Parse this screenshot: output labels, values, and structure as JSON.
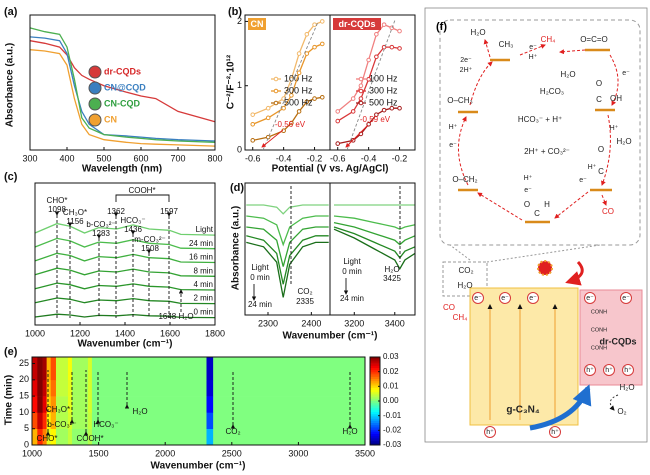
{
  "chart_data": [
    {
      "type": "line",
      "label": "(a)",
      "xlabel": "Wavelength (nm)",
      "ylabel": "Absorbance (a.u.)",
      "xlim": [
        300,
        800
      ],
      "ylim": [
        0,
        1.05
      ],
      "xticks": [
        300,
        400,
        500,
        600,
        700,
        800
      ],
      "x": [
        300,
        340,
        380,
        400,
        420,
        440,
        460,
        500,
        560,
        600,
        640,
        700,
        800
      ],
      "series": [
        {
          "name": "dr-CQDs",
          "color": "#d63a3a",
          "values": [
            0.85,
            0.83,
            0.8,
            0.74,
            0.64,
            0.58,
            0.55,
            0.5,
            0.45,
            0.42,
            0.4,
            0.3,
            0.22
          ]
        },
        {
          "name": "CN@CQD",
          "color": "#3a7fc0",
          "values": [
            0.88,
            0.87,
            0.85,
            0.75,
            0.5,
            0.3,
            0.2,
            0.12,
            0.11,
            0.1,
            0.09,
            0.08,
            0.07
          ]
        },
        {
          "name": "CN-CQD",
          "color": "#4caf50",
          "values": [
            0.95,
            0.92,
            0.9,
            0.8,
            0.55,
            0.25,
            0.17,
            0.12,
            0.1,
            0.09,
            0.08,
            0.07,
            0.06
          ]
        },
        {
          "name": "CN",
          "color": "#f0a030",
          "values": [
            0.78,
            0.77,
            0.75,
            0.66,
            0.4,
            0.2,
            0.12,
            0.08,
            0.06,
            0.05,
            0.045,
            0.04,
            0.03
          ]
        }
      ]
    },
    {
      "type": "line",
      "label": "(b)",
      "tag": "CN",
      "tag_color": "#f0a030",
      "markers": true,
      "xlabel": "Potential (V vs. Ag/AgCl)",
      "ylabel": "C⁻²/F⁻²·10¹²",
      "xlim": [
        -0.65,
        -0.1
      ],
      "ylim": [
        0,
        2.1
      ],
      "xticks": [
        -0.6,
        -0.4,
        -0.2
      ],
      "yticks": [
        0,
        1,
        2
      ],
      "x": [
        -0.6,
        -0.5,
        -0.4,
        -0.35,
        -0.3,
        -0.25,
        -0.2,
        -0.15
      ],
      "series": [
        {
          "name": "100 Hz",
          "color": "#f2b96b",
          "values": [
            0.55,
            0.65,
            0.8,
            1.1,
            1.5,
            1.8,
            1.95,
            2.0
          ]
        },
        {
          "name": "300 Hz",
          "color": "#e8962a",
          "values": [
            0.4,
            0.5,
            0.65,
            0.85,
            1.2,
            1.5,
            1.6,
            1.65
          ]
        },
        {
          "name": "500 Hz",
          "color": "#b86e10",
          "values": [
            0.15,
            0.2,
            0.3,
            0.42,
            0.6,
            0.75,
            0.8,
            0.82
          ]
        }
      ],
      "annotations": [
        "-0.56 eV"
      ]
    },
    {
      "type": "line",
      "tag": "dr-CQDs",
      "tag_color": "#d63a3a",
      "markers": true,
      "xlim": [
        -0.65,
        -0.1
      ],
      "ylim": [
        0,
        2.1
      ],
      "xticks": [
        -0.6,
        -0.4,
        -0.2
      ],
      "x": [
        -0.6,
        -0.5,
        -0.45,
        -0.4,
        -0.35,
        -0.3,
        -0.25,
        -0.2
      ],
      "series": [
        {
          "name": "100 Hz",
          "color": "#f08080",
          "values": [
            0.6,
            0.8,
            1.0,
            1.4,
            1.8,
            1.95,
            1.9,
            1.85
          ]
        },
        {
          "name": "300 Hz",
          "color": "#d9383a",
          "values": [
            0.45,
            0.6,
            0.8,
            1.1,
            1.45,
            1.6,
            1.6,
            1.58
          ]
        },
        {
          "name": "500 Hz",
          "color": "#a51c1c",
          "values": [
            0.1,
            0.15,
            0.25,
            0.4,
            0.55,
            0.62,
            0.65,
            0.65
          ]
        }
      ],
      "annotations": [
        "-0.59 eV"
      ]
    },
    {
      "type": "line",
      "label": "(c)",
      "xlabel": "Wavenumber (cm⁻¹)",
      "xlim": [
        1000,
        1800
      ],
      "ylim": [
        -0.5,
        10
      ],
      "xticks": [
        1000,
        1200,
        1400,
        1600,
        1800
      ],
      "x": [
        1000,
        1098,
        1156,
        1220,
        1283,
        1362,
        1436,
        1508,
        1597,
        1648,
        1800
      ],
      "series": [
        {
          "name": "0 min",
          "color": "#1f7a1f",
          "values": [
            0.09,
            0.3,
            0.24,
            0.09,
            0.21,
            0.18,
            0.27,
            0.18,
            0.15,
            0.06,
            0.05
          ]
        },
        {
          "name": "2 min",
          "color": "#238823",
          "values": [
            1.15,
            1.5,
            1.4,
            1.15,
            1.35,
            1.3,
            1.45,
            1.3,
            1.25,
            1.1,
            1.08
          ]
        },
        {
          "name": "4 min",
          "color": "#2a962a",
          "values": [
            2.18,
            2.6,
            2.48,
            2.18,
            2.42,
            2.36,
            2.54,
            2.36,
            2.3,
            2.12,
            2.09
          ]
        },
        {
          "name": "8 min",
          "color": "#33a333",
          "values": [
            3.21,
            3.7,
            3.56,
            3.21,
            3.49,
            3.42,
            3.63,
            3.42,
            3.35,
            3.14,
            3.1
          ]
        },
        {
          "name": "16 min",
          "color": "#3fb03f",
          "values": [
            4.24,
            4.8,
            4.64,
            4.24,
            4.56,
            4.48,
            4.72,
            4.48,
            4.4,
            4.16,
            4.12
          ]
        },
        {
          "name": "24 min",
          "color": "#4cbc4c",
          "values": [
            5.27,
            5.9,
            5.72,
            5.27,
            5.63,
            5.54,
            5.81,
            5.54,
            5.45,
            5.18,
            5.14
          ]
        },
        {
          "name": "Light",
          "color": "#6fcf6f",
          "values": [
            6.3,
            7.0,
            6.8,
            6.3,
            6.7,
            6.6,
            6.9,
            6.6,
            6.5,
            6.2,
            6.15
          ]
        }
      ],
      "annotations": [
        "CHO*",
        "1098",
        "CH₃O*",
        "1156",
        "b-CO₃²⁻",
        "1283",
        "1362",
        "COOH*",
        "1597",
        "HCO₃⁻",
        "1436",
        "m-CO₃²⁻",
        "1508",
        "1648 H₂O"
      ]
    },
    {
      "type": "line",
      "label": "(d)",
      "xlabel": "Wavenumber (cm⁻¹)",
      "ylabel": "Absorbance (a.u.)",
      "xlim": [
        2247,
        2443
      ],
      "ylim": [
        0,
        6
      ],
      "xticks": [
        2300,
        2400
      ],
      "x": [
        2250,
        2290,
        2320,
        2335,
        2350,
        2380,
        2410,
        2440
      ],
      "series": [
        {
          "color": "#7fd27f",
          "values": [
            5,
            5,
            4.9,
            4.6,
            4.9,
            5,
            5,
            5
          ]
        },
        {
          "color": "#4cbc4c",
          "values": [
            4.5,
            4.4,
            4.1,
            3.2,
            4.0,
            4.4,
            4.5,
            4.5
          ]
        },
        {
          "color": "#33a333",
          "values": [
            4.0,
            3.9,
            3.4,
            2.2,
            3.3,
            3.9,
            4.0,
            4.0
          ]
        },
        {
          "color": "#238823",
          "values": [
            3.6,
            3.4,
            2.8,
            1.4,
            2.7,
            3.4,
            3.6,
            3.6
          ]
        },
        {
          "color": "#1a6e1a",
          "values": [
            3.3,
            3.1,
            2.4,
            0.8,
            2.3,
            3.1,
            3.3,
            3.3
          ]
        }
      ],
      "annotations": [
        "Light",
        "0 min",
        "24 min",
        "CO₂",
        "2335"
      ]
    },
    {
      "type": "line",
      "xlim": [
        3080,
        3500
      ],
      "ylim": [
        0,
        6
      ],
      "xticks": [
        3200,
        3400
      ],
      "x": [
        3100,
        3200,
        3300,
        3400,
        3425,
        3450,
        3500
      ],
      "series": [
        {
          "color": "#7fd27f",
          "values": [
            5,
            5,
            5,
            5,
            5,
            5,
            5
          ]
        },
        {
          "color": "#4cbc4c",
          "values": [
            4.5,
            4.4,
            4.2,
            4.0,
            3.9,
            4.0,
            4.1
          ]
        },
        {
          "color": "#33a333",
          "values": [
            4.2,
            4.0,
            3.7,
            3.4,
            3.2,
            3.4,
            3.6
          ]
        },
        {
          "color": "#238823",
          "values": [
            4.0,
            3.7,
            3.3,
            2.9,
            2.6,
            2.9,
            3.1
          ]
        },
        {
          "color": "#1a6e1a",
          "values": [
            3.9,
            3.5,
            3.0,
            2.5,
            2.1,
            2.5,
            2.8
          ]
        }
      ],
      "annotations": [
        "Light",
        "0 min",
        "24 min",
        "H₂O",
        "3425"
      ]
    },
    {
      "type": "heatmap",
      "label": "(e)",
      "xlabel": "Wavenumber (cm⁻¹)",
      "ylabel": "Time (min)",
      "xlim": [
        1000,
        3500
      ],
      "ylim": [
        0,
        27
      ],
      "xticks": [
        1000,
        1500,
        2000,
        2500,
        3000,
        3500
      ],
      "yticks": [
        0,
        5,
        10,
        15,
        20,
        25
      ],
      "xbins": [
        1000,
        1040,
        1080,
        1110,
        1140,
        1180,
        1270,
        1300,
        1420,
        1450,
        2310,
        2360,
        3500
      ],
      "ybins": [
        0,
        5,
        10,
        15,
        20,
        27
      ],
      "z": [
        [
          0.012,
          0.02,
          0.015,
          0.006,
          0.008,
          0.002,
          0.004,
          0.001,
          0.003,
          0.0,
          -0.012,
          0.0
        ],
        [
          0.018,
          0.026,
          0.02,
          0.008,
          0.012,
          0.003,
          0.005,
          0.002,
          0.004,
          0.0,
          -0.018,
          0.0
        ],
        [
          0.022,
          0.03,
          0.024,
          0.01,
          0.014,
          0.003,
          0.006,
          0.002,
          0.005,
          0.0,
          -0.022,
          0.0
        ],
        [
          0.024,
          0.03,
          0.026,
          0.011,
          0.016,
          0.004,
          0.006,
          0.002,
          0.005,
          0.0,
          -0.025,
          0.0
        ],
        [
          0.026,
          0.03,
          0.028,
          0.012,
          0.018,
          0.004,
          0.007,
          0.002,
          0.005,
          0.0,
          -0.026,
          0.0
        ]
      ],
      "zlim": [
        -0.03,
        0.03
      ],
      "zticks": [
        0.03,
        0.02,
        0.01,
        {
          "value": 0,
          "label": "0.00"
        },
        -0.01,
        -0.02,
        -0.03
      ],
      "annotations": [
        "CHO*",
        "b-CO₃²⁻",
        "CH₃O*",
        "COOH*",
        "HCO₃⁻",
        "H₂O",
        "CO₂",
        "H₂O"
      ]
    }
  ],
  "diagram": {
    "texts": [
      "(f)",
      "H₂O",
      "CH₃",
      "CH₄",
      "O=C=O",
      "e⁻",
      "H⁺",
      "2e⁻",
      "2H⁺",
      "H₂O",
      "H₂CO₃",
      "O–CH₃",
      "O",
      "C",
      "OH",
      "e⁻",
      "H⁺",
      "HCO₃⁻ + H⁺",
      "H⁺",
      "e⁻",
      "2H⁺ + CO₃²⁻",
      "O",
      "C",
      "H₂O",
      "e⁻",
      "H⁺",
      "H⁺",
      "e⁻",
      "O–CH₂",
      "O",
      "C",
      "H",
      "CO",
      "CO₂",
      "H₂O",
      "CO",
      "CH₄",
      "e⁻",
      "e⁻",
      "e⁻",
      "e⁻",
      "e⁻",
      "CONH",
      "CONH",
      "CONH",
      "dr-CQDs",
      "h⁺",
      "h⁺",
      "h⁺",
      "g-C₃N₄",
      "h⁺",
      "h⁺",
      "H₂O",
      "O₂"
    ]
  }
}
